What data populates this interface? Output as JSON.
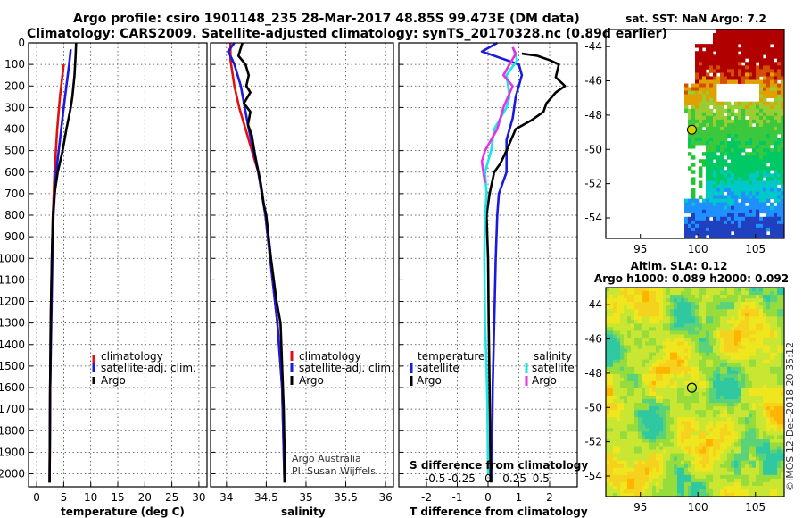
{
  "header": {
    "title_line1": "Argo profile: csiro 1901148_235 28-Mar-2017 48.85S 99.473E (DM data)",
    "title_line2": "Climatology: CARS2009. Satellite-adjusted climatology: synTS_20170328.nc (0.89d earlier)"
  },
  "colors": {
    "climatology": "#e01010",
    "satellite": "#1a1adc",
    "argo": "#000000",
    "sat_salinity": "#19e6e6",
    "clim_salinity_diff": "#e632e6"
  },
  "chart_data": [
    {
      "id": "temperature",
      "type": "line",
      "xlabel": "temperature (deg C)",
      "ylabel": "depth",
      "xlim": [
        -1.5,
        31.5
      ],
      "ylim": [
        2060,
        0
      ],
      "xticks": [
        0,
        5,
        10,
        15,
        20,
        25,
        30
      ],
      "xtick_labels": [
        "0",
        "5",
        "10",
        "15",
        "20",
        "25",
        "30"
      ],
      "yticks": [
        0,
        100,
        200,
        300,
        400,
        500,
        600,
        700,
        800,
        900,
        1000,
        1100,
        1200,
        1300,
        1400,
        1500,
        1600,
        1700,
        1800,
        1900,
        2000
      ],
      "ytick_labels": [
        "0",
        "100",
        "200",
        "300",
        "400",
        "500",
        "600",
        "700",
        "800",
        "900",
        "1000",
        "1100",
        "1200",
        "1300",
        "1400",
        "1500",
        "1600",
        "1700",
        "1800",
        "1900",
        "2000"
      ],
      "legend": [
        "climatology",
        "satellite-adj. clim.",
        "Argo"
      ],
      "series": [
        {
          "name": "climatology",
          "color": "#e01010",
          "points": [
            [
              5.0,
              100
            ],
            [
              4.3,
              250
            ],
            [
              3.8,
              400
            ],
            [
              3.3,
              600
            ],
            [
              3.0,
              800
            ],
            [
              2.8,
              1000
            ],
            [
              2.6,
              1300
            ],
            [
              2.5,
              1600
            ],
            [
              2.4,
              2040
            ]
          ]
        },
        {
          "name": "satellite-adj. clim.",
          "color": "#1a1adc",
          "points": [
            [
              6.3,
              30
            ],
            [
              6.0,
              100
            ],
            [
              5.5,
              200
            ],
            [
              5.0,
              300
            ],
            [
              4.3,
              450
            ],
            [
              3.6,
              600
            ],
            [
              3.1,
              800
            ],
            [
              2.9,
              1000
            ],
            [
              2.7,
              1300
            ],
            [
              2.5,
              1600
            ],
            [
              2.4,
              2040
            ]
          ]
        },
        {
          "name": "Argo",
          "color": "#000000",
          "points": [
            [
              7.3,
              0
            ],
            [
              7.2,
              60
            ],
            [
              7.0,
              150
            ],
            [
              6.6,
              250
            ],
            [
              6.3,
              300
            ],
            [
              5.5,
              400
            ],
            [
              4.8,
              500
            ],
            [
              3.9,
              600
            ],
            [
              3.3,
              700
            ],
            [
              3.0,
              800
            ],
            [
              2.8,
              1000
            ],
            [
              2.6,
              1300
            ],
            [
              2.5,
              1600
            ],
            [
              2.4,
              2040
            ]
          ]
        }
      ]
    },
    {
      "id": "salinity",
      "type": "line",
      "xlabel": "salinity",
      "ylabel": "depth",
      "xlim": [
        33.8,
        36.1
      ],
      "ylim": [
        2060,
        0
      ],
      "xticks": [
        34,
        34.5,
        35,
        35.5,
        36
      ],
      "xtick_labels": [
        "34",
        "34.5",
        "35",
        "35.5",
        "36"
      ],
      "legend": [
        "climatology",
        "satellite-adj. clim.",
        "Argo"
      ],
      "series": [
        {
          "name": "climatology",
          "color": "#e01010",
          "points": [
            [
              34.05,
              0
            ],
            [
              34.05,
              80
            ],
            [
              34.1,
              200
            ],
            [
              34.16,
              300
            ],
            [
              34.24,
              400
            ],
            [
              34.32,
              500
            ],
            [
              34.4,
              600
            ],
            [
              34.49,
              800
            ],
            [
              34.55,
              1000
            ],
            [
              34.64,
              1300
            ],
            [
              34.7,
              1600
            ],
            [
              34.72,
              1900
            ],
            [
              34.73,
              2040
            ]
          ]
        },
        {
          "name": "satellite-adj. clim.",
          "color": "#1a1adc",
          "points": [
            [
              34.1,
              0
            ],
            [
              34.02,
              40
            ],
            [
              34.05,
              60
            ],
            [
              34.1,
              100
            ],
            [
              34.18,
              200
            ],
            [
              34.23,
              300
            ],
            [
              34.28,
              400
            ],
            [
              34.34,
              500
            ],
            [
              34.4,
              600
            ],
            [
              34.49,
              800
            ],
            [
              34.55,
              1000
            ],
            [
              34.64,
              1300
            ],
            [
              34.7,
              1600
            ],
            [
              34.72,
              1900
            ],
            [
              34.73,
              2040
            ]
          ]
        },
        {
          "name": "Argo",
          "color": "#000000",
          "points": [
            [
              34.2,
              0
            ],
            [
              34.15,
              60
            ],
            [
              34.24,
              100
            ],
            [
              34.28,
              150
            ],
            [
              34.25,
              200
            ],
            [
              34.3,
              230
            ],
            [
              34.22,
              280
            ],
            [
              34.3,
              320
            ],
            [
              34.27,
              380
            ],
            [
              34.32,
              430
            ],
            [
              34.35,
              500
            ],
            [
              34.38,
              560
            ],
            [
              34.43,
              650
            ],
            [
              34.47,
              750
            ],
            [
              34.5,
              800
            ],
            [
              34.56,
              1000
            ],
            [
              34.63,
              1200
            ],
            [
              34.68,
              1300
            ],
            [
              34.7,
              1500
            ],
            [
              34.72,
              1700
            ],
            [
              34.73,
              1900
            ],
            [
              34.73,
              2040
            ]
          ]
        }
      ]
    },
    {
      "id": "difference",
      "type": "line",
      "xlabel": "T difference from climatology",
      "xlabel_top": "S difference from climatology",
      "xlim": [
        -2.9,
        2.9
      ],
      "ylim": [
        2060,
        0
      ],
      "xticks": [
        -2,
        -1,
        0,
        1,
        2
      ],
      "xtick_labels": [
        "-2",
        "-1",
        "0",
        "1",
        "2"
      ],
      "xticks_top": [
        -1.72,
        -0.86,
        0,
        0.86,
        1.72
      ],
      "xtick_top_labels": [
        "-0.5",
        "-0.25",
        "0",
        "0.25",
        "0.5"
      ],
      "legend_left_title": "temperature",
      "legend_right_title": "salinity",
      "legend_left": [
        "satellite",
        "Argo"
      ],
      "legend_right": [
        "satellite",
        "Argo"
      ],
      "series": [
        {
          "name": "temperature satellite",
          "color": "#1a1adc",
          "points": [
            [
              0.3,
              0
            ],
            [
              -0.2,
              40
            ],
            [
              0.6,
              80
            ],
            [
              1.0,
              100
            ],
            [
              1.1,
              150
            ],
            [
              0.9,
              250
            ],
            [
              0.8,
              350
            ],
            [
              0.6,
              450
            ],
            [
              0.6,
              600
            ],
            [
              0.35,
              700
            ],
            [
              0.3,
              800
            ],
            [
              0.25,
              1000
            ],
            [
              0.2,
              1300
            ],
            [
              0.15,
              1600
            ],
            [
              0.12,
              2040
            ]
          ]
        },
        {
          "name": "temperature Argo",
          "color": "#000000",
          "points": [
            [
              1.1,
              50
            ],
            [
              1.6,
              60
            ],
            [
              2.0,
              80
            ],
            [
              2.3,
              100
            ],
            [
              2.2,
              160
            ],
            [
              2.5,
              200
            ],
            [
              2.2,
              230
            ],
            [
              1.9,
              280
            ],
            [
              1.8,
              320
            ],
            [
              1.4,
              360
            ],
            [
              0.9,
              400
            ],
            [
              0.6,
              500
            ],
            [
              0.4,
              560
            ],
            [
              0.2,
              600
            ],
            [
              0.05,
              700
            ],
            [
              -0.05,
              800
            ],
            [
              0.0,
              1000
            ],
            [
              0.02,
              1300
            ],
            [
              0.05,
              1600
            ],
            [
              0.08,
              2040
            ]
          ]
        },
        {
          "name": "salinity satellite",
          "color": "#19e6e6",
          "points": [
            [
              0.8,
              20
            ],
            [
              0.85,
              40
            ],
            [
              0.95,
              80
            ],
            [
              0.6,
              150
            ],
            [
              0.7,
              250
            ],
            [
              0.6,
              300
            ],
            [
              0.2,
              400
            ],
            [
              0.1,
              500
            ],
            [
              -0.1,
              600
            ],
            [
              -0.05,
              700
            ],
            [
              -0.1,
              800
            ],
            [
              -0.12,
              1000
            ],
            [
              -0.1,
              1300
            ],
            [
              -0.05,
              1500
            ],
            [
              -0.02,
              1700
            ],
            [
              0.0,
              2000
            ]
          ]
        },
        {
          "name": "salinity Argo",
          "color": "#e632e6",
          "points": [
            [
              0.8,
              20
            ],
            [
              0.9,
              50
            ],
            [
              0.7,
              100
            ],
            [
              0.5,
              150
            ],
            [
              0.8,
              200
            ],
            [
              0.5,
              300
            ],
            [
              0.3,
              400
            ],
            [
              0.1,
              450
            ],
            [
              -0.1,
              500
            ],
            [
              -0.2,
              550
            ],
            [
              -0.15,
              600
            ],
            [
              -0.1,
              650
            ]
          ]
        }
      ]
    },
    {
      "id": "sst_map",
      "type": "heatmap",
      "title": "sat. SST: NaN Argo: 7.2",
      "xlim": [
        92,
        107.5
      ],
      "ylim": [
        -55.2,
        -43
      ],
      "xticks": [
        95,
        100,
        105
      ],
      "xtick_labels": [
        "95",
        "100",
        "105"
      ],
      "yticks": [
        -44,
        -46,
        -48,
        -50,
        -52,
        -54
      ],
      "ytick_labels": [
        "-44",
        "-46",
        "-48",
        "-50",
        "-52",
        "-54"
      ],
      "float_position": [
        99.473,
        -48.85
      ]
    },
    {
      "id": "sla_map",
      "type": "heatmap",
      "title_line1": "Altim. SLA: 0.12",
      "title_line2": "Argo h1000: 0.089 h2000: 0.092",
      "xlim": [
        92,
        107.5
      ],
      "ylim": [
        -55.2,
        -43
      ],
      "xticks": [
        95,
        100,
        105
      ],
      "xtick_labels": [
        "95",
        "100",
        "105"
      ],
      "yticks": [
        -44,
        -46,
        -48,
        -50,
        -52,
        -54
      ],
      "ytick_labels": [
        "-44",
        "-46",
        "-48",
        "-50",
        "-52",
        "-54"
      ],
      "float_position": [
        99.473,
        -48.85
      ]
    }
  ],
  "notes": {
    "credit_line1": "Argo Australia",
    "credit_line2": "PI: Susan Wijffels",
    "footer": "©IMOS 12-Dec-2018 20:35:12"
  }
}
